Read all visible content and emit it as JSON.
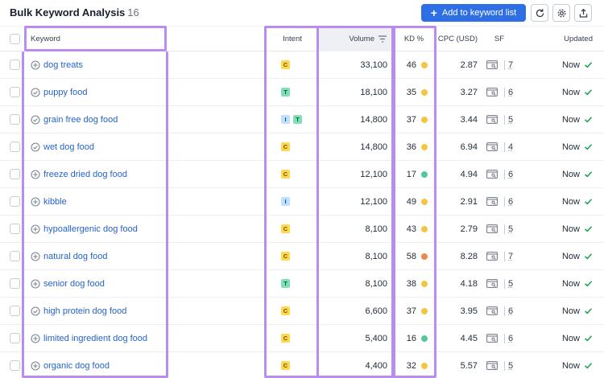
{
  "header": {
    "title": "Bulk Keyword Analysis",
    "count": "16",
    "add_button_label": "Add to keyword list"
  },
  "columns": {
    "keyword": "Keyword",
    "intent": "Intent",
    "volume": "Volume",
    "kd": "KD %",
    "cpc": "CPC (USD)",
    "sf": "SF",
    "updated": "Updated"
  },
  "colors": {
    "accent": "#2f6fe6",
    "highlight": "#b98df0",
    "kd_yellow": "#f5c542",
    "kd_green": "#53c99b",
    "kd_orange": "#ea8a4c",
    "updated_check": "#16a34a"
  },
  "rows": [
    {
      "keyword": "dog treats",
      "icon": "plus-circle-icon",
      "intents": [
        "C"
      ],
      "volume": "33,100",
      "kd": "46",
      "kd_color": "#f5c542",
      "cpc": "2.87",
      "sf": "7",
      "updated": "Now"
    },
    {
      "keyword": "puppy food",
      "icon": "check-circle-icon",
      "intents": [
        "T"
      ],
      "volume": "18,100",
      "kd": "35",
      "kd_color": "#f5c542",
      "cpc": "3.27",
      "sf": "6",
      "updated": "Now"
    },
    {
      "keyword": "grain free dog food",
      "icon": "check-circle-icon",
      "intents": [
        "I",
        "T"
      ],
      "volume": "14,800",
      "kd": "37",
      "kd_color": "#f5c542",
      "cpc": "3.44",
      "sf": "5",
      "updated": "Now"
    },
    {
      "keyword": "wet dog food",
      "icon": "check-circle-icon",
      "intents": [
        "C"
      ],
      "volume": "14,800",
      "kd": "36",
      "kd_color": "#f5c542",
      "cpc": "6.94",
      "sf": "4",
      "updated": "Now"
    },
    {
      "keyword": "freeze dried dog food",
      "icon": "plus-circle-icon",
      "intents": [
        "C"
      ],
      "volume": "12,100",
      "kd": "17",
      "kd_color": "#53c99b",
      "cpc": "4.94",
      "sf": "6",
      "updated": "Now"
    },
    {
      "keyword": "kibble",
      "icon": "plus-circle-icon",
      "intents": [
        "I"
      ],
      "volume": "12,100",
      "kd": "49",
      "kd_color": "#f5c542",
      "cpc": "2.91",
      "sf": "6",
      "updated": "Now"
    },
    {
      "keyword": "hypoallergenic dog food",
      "icon": "plus-circle-icon",
      "intents": [
        "C"
      ],
      "volume": "8,100",
      "kd": "43",
      "kd_color": "#f5c542",
      "cpc": "2.79",
      "sf": "5",
      "updated": "Now"
    },
    {
      "keyword": "natural dog food",
      "icon": "plus-circle-icon",
      "intents": [
        "C"
      ],
      "volume": "8,100",
      "kd": "58",
      "kd_color": "#ea8a4c",
      "cpc": "8.28",
      "sf": "7",
      "updated": "Now"
    },
    {
      "keyword": "senior dog food",
      "icon": "plus-circle-icon",
      "intents": [
        "T"
      ],
      "volume": "8,100",
      "kd": "38",
      "kd_color": "#f5c542",
      "cpc": "4.18",
      "sf": "5",
      "updated": "Now"
    },
    {
      "keyword": "high protein dog food",
      "icon": "check-circle-icon",
      "intents": [
        "C"
      ],
      "volume": "6,600",
      "kd": "37",
      "kd_color": "#f5c542",
      "cpc": "3.95",
      "sf": "6",
      "updated": "Now"
    },
    {
      "keyword": "limited ingredient dog food",
      "icon": "plus-circle-icon",
      "intents": [
        "C"
      ],
      "volume": "5,400",
      "kd": "16",
      "kd_color": "#53c99b",
      "cpc": "4.45",
      "sf": "6",
      "updated": "Now"
    },
    {
      "keyword": "organic dog food",
      "icon": "plus-circle-icon",
      "intents": [
        "C"
      ],
      "volume": "4,400",
      "kd": "32",
      "kd_color": "#f5c542",
      "cpc": "5.57",
      "sf": "5",
      "updated": "Now"
    }
  ]
}
